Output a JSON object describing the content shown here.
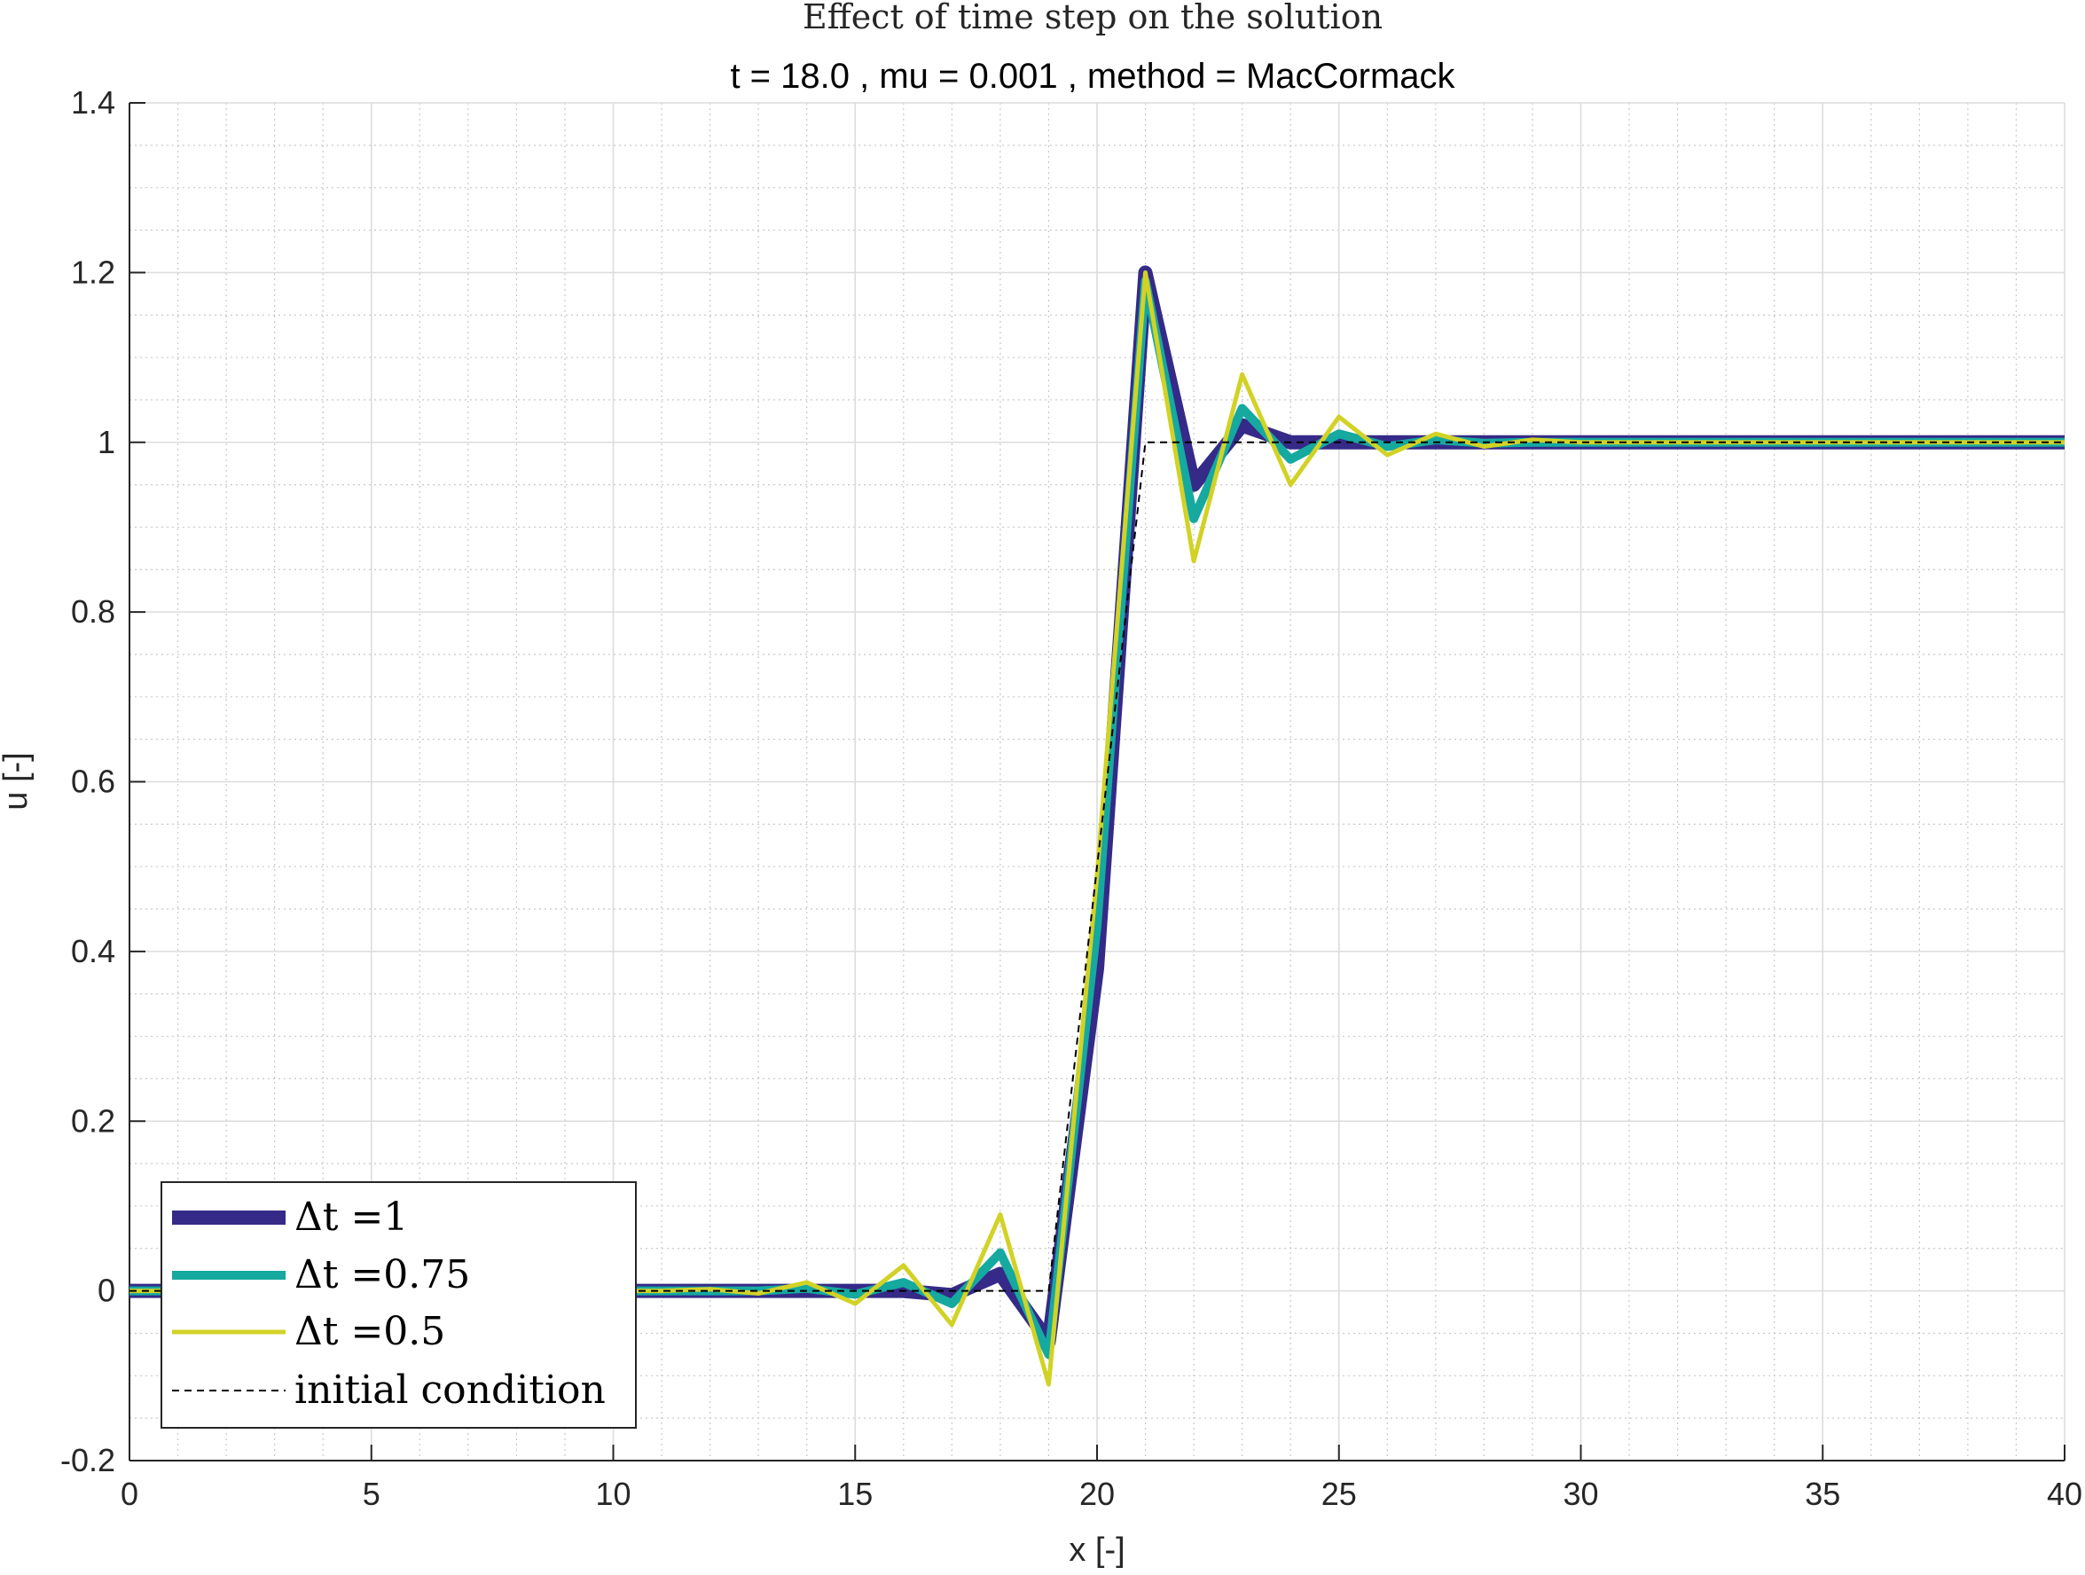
{
  "chart_data": {
    "type": "line",
    "title": "Effect of time step on the solution",
    "subtitle": "t = 18.0 , mu = 0.001 , method = MacCormack",
    "xlabel": "x [-]",
    "ylabel": "u [-]",
    "xlim": [
      0,
      40
    ],
    "ylim": [
      -0.2,
      1.4
    ],
    "xticks": [
      0,
      5,
      10,
      15,
      20,
      25,
      30,
      35,
      40
    ],
    "xtick_labels": [
      "0",
      "5",
      "10",
      "15",
      "20",
      "25",
      "30",
      "35",
      "40"
    ],
    "yticks": [
      -0.2,
      0,
      0.2,
      0.4,
      0.6,
      0.8,
      1,
      1.2,
      1.4
    ],
    "ytick_labels": [
      "-0.2",
      "0",
      "0.2",
      "0.4",
      "0.6",
      "0.8",
      "1",
      "1.2",
      "1.4"
    ],
    "grid": true,
    "minor_grid": true,
    "legend_position": "bottom-left",
    "x": [
      0,
      1,
      2,
      3,
      4,
      5,
      6,
      7,
      8,
      9,
      10,
      11,
      12,
      13,
      14,
      15,
      16,
      17,
      18,
      19,
      20,
      21,
      22,
      23,
      24,
      25,
      26,
      27,
      28,
      29,
      30,
      31,
      32,
      33,
      34,
      35,
      36,
      37,
      38,
      39,
      40
    ],
    "series": [
      {
        "name": "Δt =1",
        "color": "#352a87",
        "style": "thick",
        "values": [
          0,
          0,
          0,
          0,
          0,
          0,
          0,
          0,
          0,
          0,
          0,
          0,
          0,
          0,
          0,
          0,
          0,
          -0.005,
          0.02,
          -0.06,
          0.38,
          1.2,
          0.95,
          1.02,
          1.0,
          1.0,
          1.0,
          1.0,
          1.0,
          1.0,
          1.0,
          1.0,
          1.0,
          1.0,
          1.0,
          1.0,
          1.0,
          1.0,
          1.0,
          1.0,
          1.0
        ]
      },
      {
        "name": "Δt =0.75",
        "color": "#15a9a0",
        "style": "medium",
        "values": [
          0,
          0,
          0,
          0,
          0,
          0,
          0,
          0,
          0,
          0,
          0,
          0,
          0,
          0,
          0.003,
          -0.004,
          0.01,
          -0.015,
          0.045,
          -0.075,
          0.43,
          1.19,
          0.91,
          1.04,
          0.98,
          1.01,
          0.995,
          1.003,
          0.999,
          1.0,
          1.0,
          1.0,
          1.0,
          1.0,
          1.0,
          1.0,
          1.0,
          1.0,
          1.0,
          1.0,
          1.0
        ]
      },
      {
        "name": "Δt =0.5",
        "color": "#d2d226",
        "style": "thin",
        "values": [
          0,
          0,
          0,
          0,
          0,
          0,
          0,
          0,
          0,
          0,
          0,
          0,
          0.002,
          -0.003,
          0.01,
          -0.015,
          0.03,
          -0.04,
          0.09,
          -0.11,
          0.49,
          1.2,
          0.86,
          1.08,
          0.95,
          1.03,
          0.985,
          1.01,
          0.995,
          1.003,
          1.0,
          1.0,
          1.0,
          1.0,
          1.0,
          1.0,
          1.0,
          1.0,
          1.0,
          1.0,
          1.0
        ]
      },
      {
        "name": "initial condition",
        "color": "#000000",
        "style": "dashed",
        "values": [
          0,
          0,
          0,
          0,
          0,
          0,
          0,
          0,
          0,
          0,
          0,
          0,
          0,
          0,
          0,
          0,
          0,
          0,
          0,
          0,
          0.5,
          1,
          1,
          1,
          1,
          1,
          1,
          1,
          1,
          1,
          1,
          1,
          1,
          1,
          1,
          1,
          1,
          1,
          1,
          1,
          1
        ]
      }
    ]
  }
}
